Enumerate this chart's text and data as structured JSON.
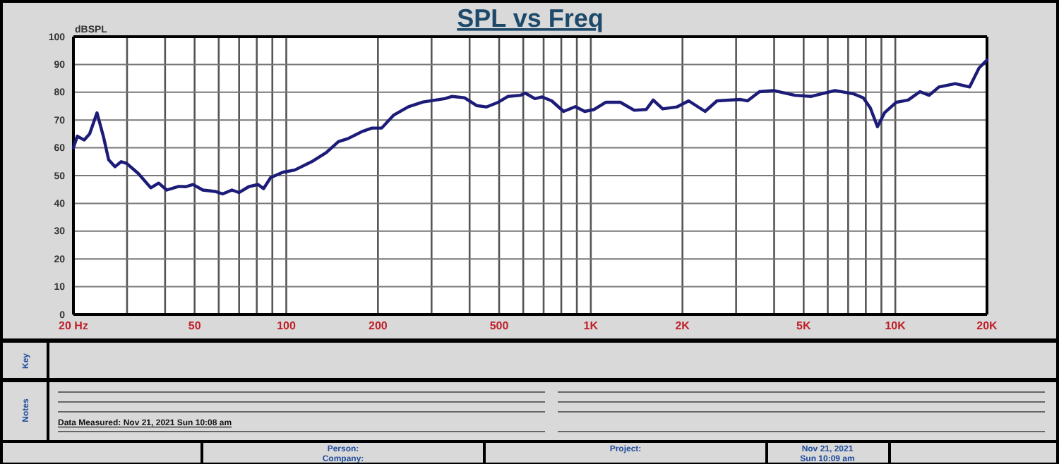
{
  "chart_data": {
    "type": "line",
    "title": "SPL vs Freq",
    "ylabel": "dBSPL",
    "log": "x",
    "grid": true,
    "marker": "none",
    "line_style": "solid",
    "xlim": [
      20,
      20000
    ],
    "ylim": [
      0,
      100
    ],
    "xticks": [
      {
        "value": 20,
        "label": "20  Hz"
      },
      {
        "value": 30,
        "label": null
      },
      {
        "value": 40,
        "label": null
      },
      50,
      {
        "value": 60,
        "label": null
      },
      {
        "value": 70,
        "label": null
      },
      {
        "value": 80,
        "label": null
      },
      {
        "value": 90,
        "label": null
      },
      100,
      200,
      {
        "value": 300,
        "label": null
      },
      {
        "value": 400,
        "label": null
      },
      500,
      {
        "value": 600,
        "label": null
      },
      {
        "value": 700,
        "label": null
      },
      {
        "value": 800,
        "label": null
      },
      {
        "value": 900,
        "label": null
      },
      {
        "value": 1000,
        "label": "1K"
      },
      {
        "value": 2000,
        "label": "2K"
      },
      {
        "value": 3000,
        "label": null
      },
      {
        "value": 4000,
        "label": null
      },
      {
        "value": 5000,
        "label": "5K"
      },
      {
        "value": 6000,
        "label": null
      },
      {
        "value": 7000,
        "label": null
      },
      {
        "value": 8000,
        "label": null
      },
      {
        "value": 9000,
        "label": null
      },
      {
        "value": 10000,
        "label": "10K"
      },
      {
        "value": 20000,
        "label": "20K"
      }
    ],
    "yticks": [
      0,
      10,
      20,
      30,
      40,
      50,
      60,
      70,
      80,
      90,
      100
    ],
    "series": [
      {
        "color": "#1c1c78",
        "x": [
          20,
          20.6,
          21.7,
          22.6,
          23.9,
          25.1,
          26.1,
          27.4,
          28.7,
          29.9,
          32.7,
          35.9,
          38.1,
          40.5,
          44.3,
          46.8,
          49.4,
          53.2,
          58.4,
          61.8,
          66.3,
          69.9,
          75.3,
          80.7,
          84.2,
          88.9,
          97.5,
          106.6,
          121.2,
          135.3,
          148.3,
          159.3,
          177.7,
          191.2,
          205.7,
          225.5,
          251.9,
          281.2,
          331.6,
          350.7,
          384.7,
          421.7,
          454,
          497,
          535,
          587,
          609,
          655,
          692,
          744,
          814,
          890,
          955,
          1026,
          1122,
          1250,
          1389,
          1521,
          1603,
          1722,
          1916,
          2096,
          2373,
          2596,
          3102,
          3272,
          3580,
          3984,
          4678,
          5300,
          6336,
          7308,
          7850,
          8282,
          8737,
          9218,
          10080,
          11016,
          12050,
          12914,
          13900,
          15740,
          17540,
          18830,
          20000
        ],
        "values": [
          60,
          64.2,
          62.8,
          65,
          72.6,
          64,
          55.7,
          53.2,
          55,
          54.4,
          50.7,
          45.6,
          47.3,
          44.8,
          46.1,
          46,
          46.8,
          44.8,
          44.3,
          43.4,
          44.8,
          43.9,
          46,
          46.8,
          45.3,
          49.3,
          51.2,
          52,
          55,
          58.3,
          62.2,
          63.3,
          65.9,
          67.1,
          67.1,
          71.8,
          74.8,
          76.5,
          77.7,
          78.5,
          78,
          75.2,
          74.7,
          76.4,
          78.5,
          78.9,
          79.7,
          77.7,
          78.3,
          76.9,
          73.1,
          74.8,
          73.1,
          73.8,
          76.4,
          76.4,
          73.5,
          73.8,
          77.2,
          74,
          74.7,
          76.9,
          73.1,
          76.9,
          77.4,
          76.9,
          80.2,
          80.6,
          78.9,
          78.5,
          80.6,
          79.4,
          78,
          74.3,
          67.6,
          72.6,
          76.4,
          77.2,
          80.2,
          78.9,
          81.9,
          83.1,
          81.9,
          88.7,
          91.6
        ]
      }
    ],
    "annotations": [
      "Key",
      "Notes",
      "Data Measured: Nov 21, 2021  Sun 10:08 am",
      "Person:",
      "Company:",
      "Project:",
      "Nov 21, 2021",
      "Sun 10:09 am"
    ]
  }
}
